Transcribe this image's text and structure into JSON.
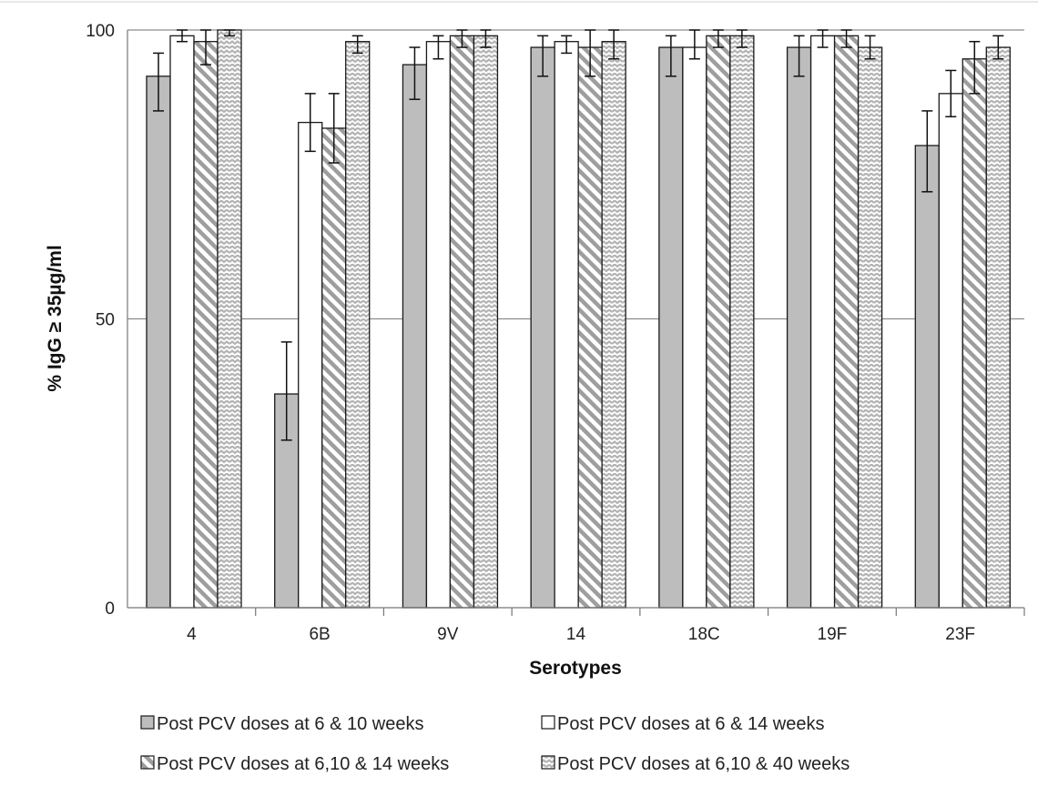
{
  "chart_data": {
    "type": "bar",
    "title": "",
    "xlabel": "Serotypes",
    "ylabel": "% IgG ≥ 35µg/ml",
    "ylim": [
      0,
      100
    ],
    "yticks": [
      0,
      50,
      100
    ],
    "grid": true,
    "legend_position": "bottom",
    "categories": [
      "4",
      "6B",
      "9V",
      "14",
      "18C",
      "19F",
      "23F"
    ],
    "series": [
      {
        "name": "Post PCV doses at 6 & 10 weeks",
        "fill": "solid-gray",
        "color": "#bdbdbd",
        "values": [
          92,
          37,
          94,
          97,
          97,
          97,
          80
        ],
        "error_low": [
          86,
          29,
          88,
          92,
          92,
          92,
          72
        ],
        "error_high": [
          96,
          46,
          97,
          99,
          99,
          99,
          86
        ]
      },
      {
        "name": "Post PCV doses at 6 & 14 weeks",
        "fill": "white",
        "color": "#ffffff",
        "values": [
          99,
          84,
          98,
          98,
          97,
          99,
          89
        ],
        "error_low": [
          98,
          79,
          95,
          96,
          95,
          97,
          85
        ],
        "error_high": [
          100,
          89,
          99,
          99,
          100,
          100,
          93
        ]
      },
      {
        "name": "Post PCV doses at 6,10 & 14 weeks",
        "fill": "diagonal-stripes",
        "color": "#9e9e9e",
        "values": [
          98,
          83,
          99,
          97,
          99,
          99,
          95
        ],
        "error_low": [
          94,
          77,
          97,
          92,
          97,
          97,
          89
        ],
        "error_high": [
          100,
          89,
          100,
          100,
          100,
          100,
          98
        ]
      },
      {
        "name": "Post PCV doses at 6,10 & 40 weeks",
        "fill": "wave-pattern",
        "color": "#b0b0b0",
        "values": [
          100,
          98,
          99,
          98,
          99,
          97,
          97
        ],
        "error_low": [
          99,
          96,
          97,
          95,
          97,
          95,
          95
        ],
        "error_high": [
          100,
          99,
          100,
          100,
          100,
          99,
          99
        ]
      }
    ]
  }
}
